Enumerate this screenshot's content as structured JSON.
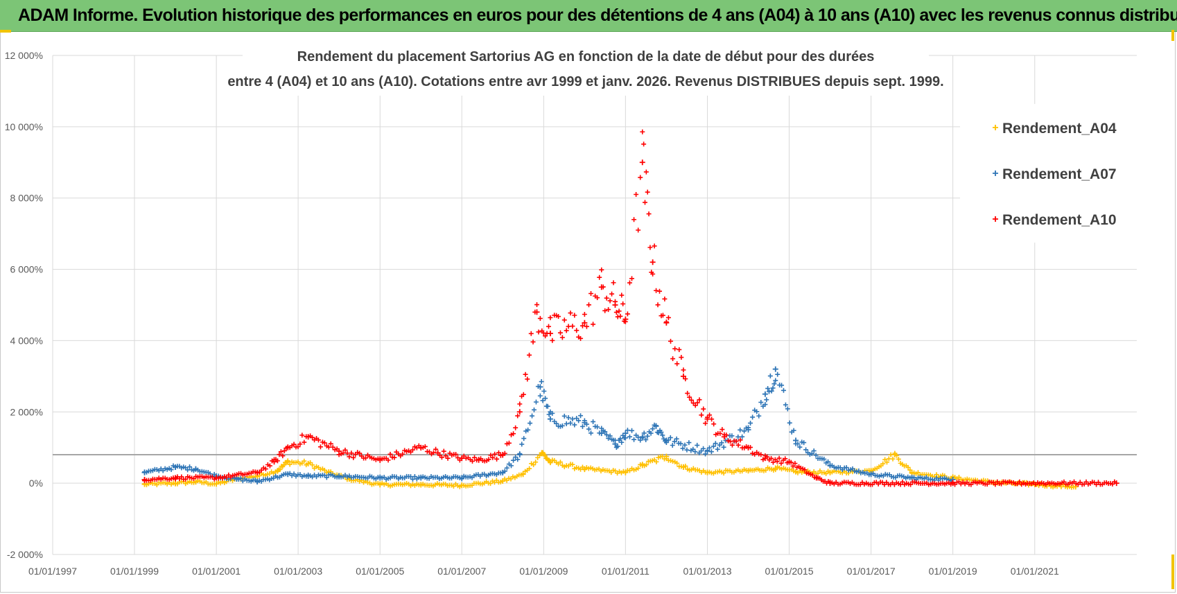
{
  "banner": {
    "text": "ADAM Informe. Evolution historique des performances en euros pour des détentions de 4 ans (A04) à 10 ans (A10) avec les revenus connus distribués"
  },
  "chart_data": {
    "type": "scatter",
    "title_lines": [
      "Rendement du placement Sartorius AG en fonction de la date de début pour des durées",
      "entre 4 (A04) et 10 ans (A10).  Cotations entre avr 1999 et janv. 2026.  Revenus DISTRIBUES depuis sept. 1999."
    ],
    "xlabel": "",
    "ylabel": "",
    "x_ticks": [
      "01/01/1997",
      "01/01/1999",
      "01/01/2001",
      "01/01/2003",
      "01/01/2005",
      "01/01/2007",
      "01/01/2009",
      "01/01/2011",
      "01/01/2013",
      "01/01/2015",
      "01/01/2017",
      "01/01/2019",
      "01/01/2021"
    ],
    "xlim": [
      "01/01/1997",
      "01/07/2023"
    ],
    "y_ticks": [
      "-2 000%",
      "0%",
      "2 000%",
      "4 000%",
      "6 000%",
      "8 000%",
      "10 000%",
      "12 000%"
    ],
    "ylim": [
      -2000,
      12000
    ],
    "ref_line_y": 800,
    "grid": true,
    "legend_position": "top-right",
    "marker": "+",
    "series": [
      {
        "name": "Rendement_A04",
        "color": "#ffc000",
        "points": [
          [
            "01/04/1999",
            -30
          ],
          [
            "01/01/2000",
            0
          ],
          [
            "01/07/2000",
            40
          ],
          [
            "01/01/2001",
            -20
          ],
          [
            "01/07/2001",
            120
          ],
          [
            "01/01/2002",
            200
          ],
          [
            "01/07/2002",
            350
          ],
          [
            "01/10/2002",
            600
          ],
          [
            "01/04/2003",
            550
          ],
          [
            "01/10/2003",
            300
          ],
          [
            "01/04/2004",
            120
          ],
          [
            "01/01/2005",
            -40
          ],
          [
            "01/01/2006",
            -40
          ],
          [
            "01/01/2007",
            -60
          ],
          [
            "01/01/2008",
            60
          ],
          [
            "01/07/2008",
            250
          ],
          [
            "15/12/2008",
            850
          ],
          [
            "01/03/2009",
            600
          ],
          [
            "01/01/2010",
            400
          ],
          [
            "01/01/2011",
            300
          ],
          [
            "01/06/2011",
            500
          ],
          [
            "01/01/2012",
            750
          ],
          [
            "01/06/2012",
            450
          ],
          [
            "01/01/2013",
            300
          ],
          [
            "01/01/2014",
            350
          ],
          [
            "01/09/2014",
            420
          ],
          [
            "01/03/2015",
            320
          ],
          [
            "01/01/2016",
            300
          ],
          [
            "01/01/2017",
            350
          ],
          [
            "01/08/2017",
            800
          ],
          [
            "01/01/2018",
            300
          ],
          [
            "01/01/2019",
            150
          ],
          [
            "01/01/2020",
            20
          ],
          [
            "01/01/2021",
            -30
          ],
          [
            "01/07/2021",
            -70
          ],
          [
            "01/01/2022",
            -100
          ]
        ]
      },
      {
        "name": "Rendement_A07",
        "color": "#2e75b6",
        "points": [
          [
            "01/04/1999",
            300
          ],
          [
            "01/01/2000",
            450
          ],
          [
            "01/07/2000",
            400
          ],
          [
            "01/01/2001",
            200
          ],
          [
            "01/07/2001",
            120
          ],
          [
            "01/01/2002",
            50
          ],
          [
            "01/10/2002",
            250
          ],
          [
            "01/04/2003",
            200
          ],
          [
            "01/01/2004",
            200
          ],
          [
            "01/01/2005",
            150
          ],
          [
            "01/01/2006",
            150
          ],
          [
            "01/01/2007",
            150
          ],
          [
            "01/01/2008",
            300
          ],
          [
            "01/06/2008",
            800
          ],
          [
            "01/12/2008",
            2700
          ],
          [
            "01/03/2009",
            1800
          ],
          [
            "01/01/2010",
            1700
          ],
          [
            "01/06/2010",
            1400
          ],
          [
            "01/10/2010",
            1100
          ],
          [
            "01/01/2011",
            1400
          ],
          [
            "01/06/2011",
            1300
          ],
          [
            "01/10/2011",
            1600
          ],
          [
            "01/01/2012",
            1200
          ],
          [
            "01/01/2013",
            900
          ],
          [
            "01/01/2014",
            1500
          ],
          [
            "01/06/2014",
            2500
          ],
          [
            "01/09/2014",
            3200
          ],
          [
            "01/03/2015",
            1200
          ],
          [
            "01/01/2016",
            500
          ],
          [
            "01/01/2017",
            250
          ],
          [
            "01/01/2018",
            150
          ],
          [
            "01/01/2019",
            100
          ]
        ]
      },
      {
        "name": "Rendement_A10",
        "color": "#ff0000",
        "points": [
          [
            "01/04/1999",
            100
          ],
          [
            "01/01/2000",
            150
          ],
          [
            "01/01/2001",
            150
          ],
          [
            "01/01/2002",
            300
          ],
          [
            "01/06/2002",
            600
          ],
          [
            "01/10/2002",
            1000
          ],
          [
            "01/04/2003",
            1300
          ],
          [
            "01/01/2004",
            900
          ],
          [
            "01/01/2005",
            650
          ],
          [
            "01/01/2006",
            1000
          ],
          [
            "01/06/2006",
            850
          ],
          [
            "01/01/2007",
            700
          ],
          [
            "01/06/2007",
            650
          ],
          [
            "01/01/2008",
            800
          ],
          [
            "01/06/2008",
            2000
          ],
          [
            "01/11/2008",
            4800
          ],
          [
            "01/03/2009",
            4200
          ],
          [
            "01/01/2010",
            4500
          ],
          [
            "01/06/2010",
            5500
          ],
          [
            "01/10/2010",
            5000
          ],
          [
            "01/01/2011",
            4600
          ],
          [
            "01/06/2011",
            9000
          ],
          [
            "01/09/2011",
            6200
          ],
          [
            "01/01/2012",
            4500
          ],
          [
            "01/06/2012",
            3000
          ],
          [
            "01/01/2013",
            1800
          ],
          [
            "01/06/2013",
            1300
          ],
          [
            "01/01/2014",
            1000
          ],
          [
            "01/06/2014",
            700
          ],
          [
            "01/01/2015",
            600
          ],
          [
            "01/09/2015",
            150
          ],
          [
            "01/01/2016",
            0
          ],
          [
            "01/01/2019",
            0
          ],
          [
            "01/01/2023",
            0
          ]
        ]
      }
    ]
  }
}
